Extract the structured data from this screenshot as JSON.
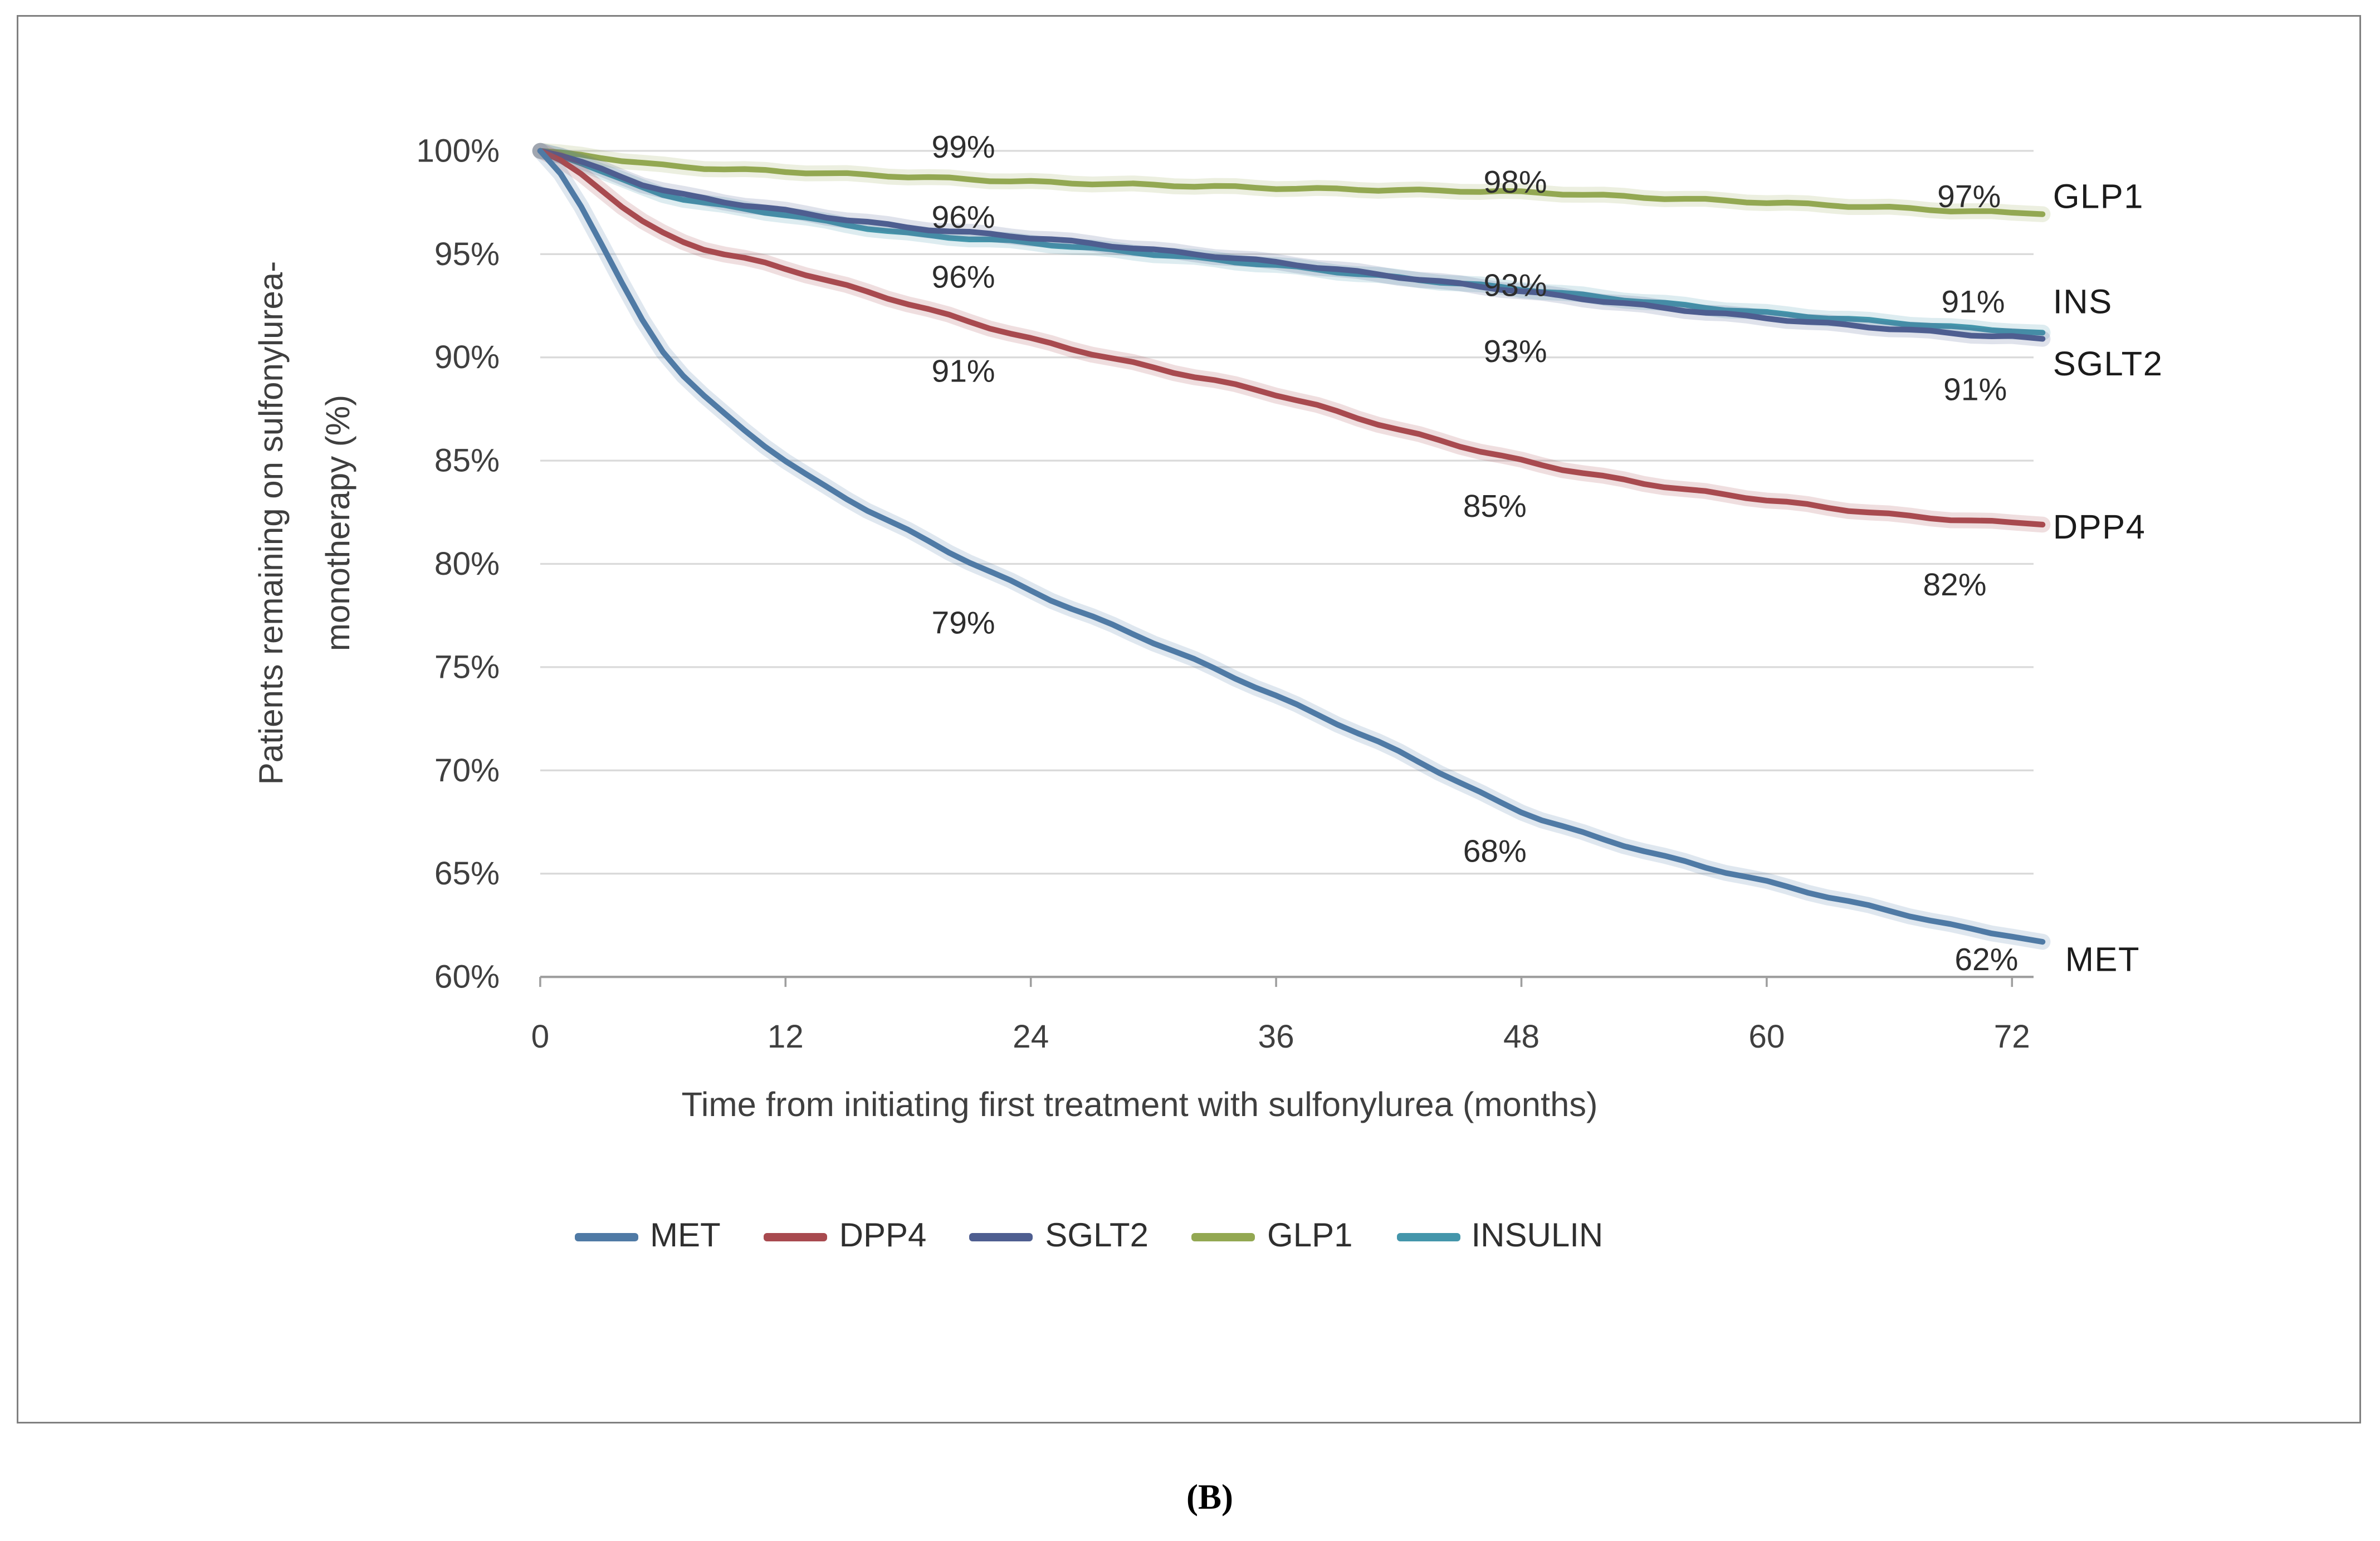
{
  "figure": {
    "caption": "(B)"
  },
  "chart_data": {
    "type": "line",
    "title": "",
    "xlabel": "Time from initiating first treatment with sulfonylurea (months)",
    "ylabel": "Patients remaining on sulfonylurea-monotherapy (%)",
    "ylabel_lines": [
      "Patients remaining on sulfonylurea-",
      "monotherapy (%)"
    ],
    "xlim": [
      0,
      72
    ],
    "ylim": [
      60,
      100
    ],
    "x_ticks": [
      0,
      12,
      24,
      36,
      48,
      60,
      72
    ],
    "y_ticks": [
      "100%",
      "95%",
      "90%",
      "85%",
      "80%",
      "75%",
      "70%",
      "65%",
      "60%"
    ],
    "grid": "horizontal",
    "legend_position": "bottom",
    "months": [
      0,
      6,
      12,
      18,
      24,
      30,
      36,
      42,
      48,
      54,
      60,
      66,
      72
    ],
    "series": [
      {
        "name": "MET",
        "color": "#4f7aa5",
        "values": [
          100,
          90.3,
          85.0,
          81.6,
          78.7,
          76.2,
          73.6,
          70.9,
          68.0,
          66.1,
          64.6,
          63.2,
          62.0
        ]
      },
      {
        "name": "DPP4",
        "color": "#a84a4f",
        "values": [
          100,
          96.0,
          94.3,
          92.6,
          90.9,
          89.5,
          88.2,
          86.5,
          85.0,
          83.9,
          83.1,
          82.4,
          82.0
        ]
      },
      {
        "name": "SGLT2",
        "color": "#4e5e90",
        "values": [
          100,
          98.1,
          97.1,
          96.3,
          95.8,
          95.2,
          94.6,
          93.9,
          93.2,
          92.5,
          91.9,
          91.4,
          91.0
        ]
      },
      {
        "name": "GLP1",
        "color": "#93a852",
        "values": [
          100,
          99.3,
          99.0,
          98.75,
          98.5,
          98.35,
          98.2,
          98.1,
          98.0,
          97.75,
          97.5,
          97.25,
          97.0
        ]
      },
      {
        "name": "INSULIN",
        "color": "#4496ab",
        "values": [
          100,
          97.9,
          96.9,
          96.0,
          95.55,
          95.0,
          94.45,
          93.85,
          93.3,
          92.7,
          92.15,
          91.7,
          91.3
        ]
      }
    ],
    "draw_order": [
      "GLP1",
      "INSULIN",
      "SGLT2",
      "DPP4",
      "MET"
    ],
    "value_labels": [
      {
        "text": "99%",
        "series": "GLP1",
        "t": 20.7,
        "v": 100.2
      },
      {
        "text": "96%",
        "series": "INSULIN",
        "t": 20.7,
        "v": 96.8
      },
      {
        "text": "96%",
        "series": "SGLT2",
        "t": 20.7,
        "v": 93.9
      },
      {
        "text": "91%",
        "series": "DPP4",
        "t": 20.7,
        "v": 89.35
      },
      {
        "text": "79%",
        "series": "MET",
        "t": 20.7,
        "v": 77.15
      },
      {
        "text": "98%",
        "series": "GLP1",
        "t": 47.7,
        "v": 98.5
      },
      {
        "text": "93%",
        "series": "INSULIN",
        "t": 47.7,
        "v": 93.5
      },
      {
        "text": "93%",
        "series": "SGLT2",
        "t": 47.7,
        "v": 90.3
      },
      {
        "text": "85%",
        "series": "DPP4",
        "t": 46.7,
        "v": 82.8
      },
      {
        "text": "68%",
        "series": "MET",
        "t": 46.7,
        "v": 66.1
      },
      {
        "text": "97%",
        "series": "GLP1",
        "t": 69.9,
        "v": 97.8
      },
      {
        "text": "91%",
        "series": "INSULIN",
        "t": 70.1,
        "v": 92.7
      },
      {
        "text": "91%",
        "series": "SGLT2",
        "t": 70.2,
        "v": 88.45
      },
      {
        "text": "82%",
        "series": "DPP4",
        "t": 69.2,
        "v": 79.0
      },
      {
        "text": "62%",
        "series": "MET",
        "t": 70.75,
        "v": 60.85
      }
    ],
    "series_labels": [
      {
        "text": "GLP1",
        "t": 74.0,
        "v": 97.8
      },
      {
        "text": "INS",
        "t": 74.0,
        "v": 92.7
      },
      {
        "text": "SGLT2",
        "t": 74.0,
        "v": 89.7
      },
      {
        "text": "DPP4",
        "t": 74.0,
        "v": 81.8
      },
      {
        "text": "MET",
        "t": 74.6,
        "v": 60.85
      }
    ]
  }
}
